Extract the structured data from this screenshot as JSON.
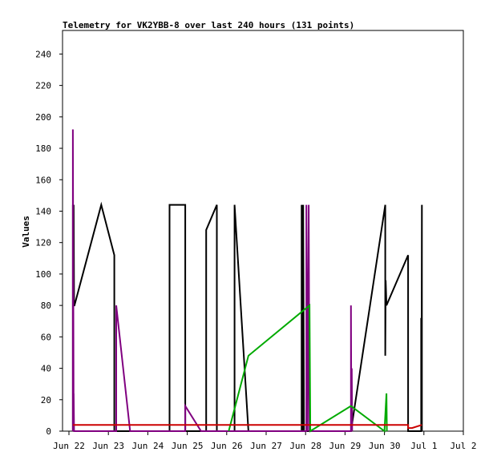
{
  "chart_data": {
    "type": "line",
    "title": "Telemetry for VK2YBB-8 over last 240 hours (131 points)",
    "xlabel": "",
    "ylabel": "Values",
    "ylim": [
      0,
      255
    ],
    "yticks": [
      0,
      20,
      40,
      60,
      80,
      100,
      120,
      140,
      160,
      180,
      200,
      220,
      240
    ],
    "xlim": [
      0,
      10.0
    ],
    "xticks": [
      {
        "x": 0,
        "label": "Jun 22"
      },
      {
        "x": 1,
        "label": "Jun 23"
      },
      {
        "x": 2,
        "label": "Jun 24"
      },
      {
        "x": 3,
        "label": "Jun 25"
      },
      {
        "x": 4,
        "label": "Jun 26"
      },
      {
        "x": 5,
        "label": "Jun 27"
      },
      {
        "x": 6,
        "label": "Jun 28"
      },
      {
        "x": 7,
        "label": "Jun 29"
      },
      {
        "x": 8,
        "label": "Jun 30"
      },
      {
        "x": 9,
        "label": "Jul 1"
      },
      {
        "x": 10,
        "label": "Jul 2"
      }
    ],
    "grid": false,
    "legend": "none",
    "series": [
      {
        "color": "#000000",
        "points": [
          [
            0.1,
            0
          ],
          [
            0.1,
            144
          ],
          [
            0.12,
            112
          ],
          [
            0.12,
            144
          ],
          [
            0.13,
            80
          ],
          [
            0.14,
            80
          ],
          [
            0.82,
            144
          ],
          [
            1.15,
            112
          ],
          [
            1.15,
            0
          ],
          [
            2.55,
            0
          ],
          [
            2.55,
            144
          ],
          [
            2.95,
            144
          ],
          [
            2.95,
            0
          ],
          [
            3.48,
            0
          ],
          [
            3.48,
            128
          ],
          [
            3.75,
            144
          ],
          [
            3.75,
            0
          ],
          [
            4.2,
            0
          ],
          [
            4.2,
            144
          ],
          [
            4.55,
            0
          ],
          [
            5.9,
            0
          ],
          [
            5.9,
            144
          ],
          [
            5.92,
            0
          ],
          [
            5.94,
            144
          ],
          [
            5.96,
            0
          ],
          [
            6.02,
            0
          ],
          [
            6.12,
            0
          ],
          [
            7.15,
            0
          ],
          [
            8.02,
            144
          ],
          [
            8.02,
            48
          ],
          [
            8.03,
            96
          ],
          [
            8.05,
            80
          ],
          [
            8.6,
            112
          ],
          [
            8.6,
            0
          ],
          [
            8.93,
            0
          ],
          [
            8.93,
            72
          ],
          [
            8.94,
            0
          ],
          [
            8.95,
            144
          ],
          [
            8.95,
            0
          ]
        ]
      },
      {
        "color": "#800080",
        "points": [
          [
            0.1,
            0
          ],
          [
            0.1,
            192
          ],
          [
            0.12,
            0
          ],
          [
            0.12,
            24
          ],
          [
            0.13,
            0
          ],
          [
            1.2,
            0
          ],
          [
            1.2,
            80
          ],
          [
            1.55,
            0
          ],
          [
            2.95,
            0
          ],
          [
            2.95,
            16
          ],
          [
            3.35,
            0
          ],
          [
            6.02,
            0
          ],
          [
            6.02,
            144
          ],
          [
            6.05,
            0
          ],
          [
            6.08,
            144
          ],
          [
            6.1,
            0
          ],
          [
            7.15,
            0
          ],
          [
            7.15,
            80
          ],
          [
            7.16,
            0
          ],
          [
            7.17,
            40
          ],
          [
            7.18,
            0
          ]
        ]
      },
      {
        "color": "#00aa00",
        "points": [
          [
            4.05,
            0
          ],
          [
            4.55,
            48
          ],
          [
            6.1,
            80
          ],
          [
            6.12,
            0
          ],
          [
            7.15,
            16
          ],
          [
            8.0,
            0
          ],
          [
            8.05,
            24
          ],
          [
            8.06,
            0
          ]
        ]
      },
      {
        "color": "#cc0000",
        "points": [
          [
            0.1,
            4
          ],
          [
            8.6,
            4
          ],
          [
            8.6,
            2
          ],
          [
            8.7,
            2
          ],
          [
            8.95,
            4
          ]
        ]
      }
    ]
  }
}
